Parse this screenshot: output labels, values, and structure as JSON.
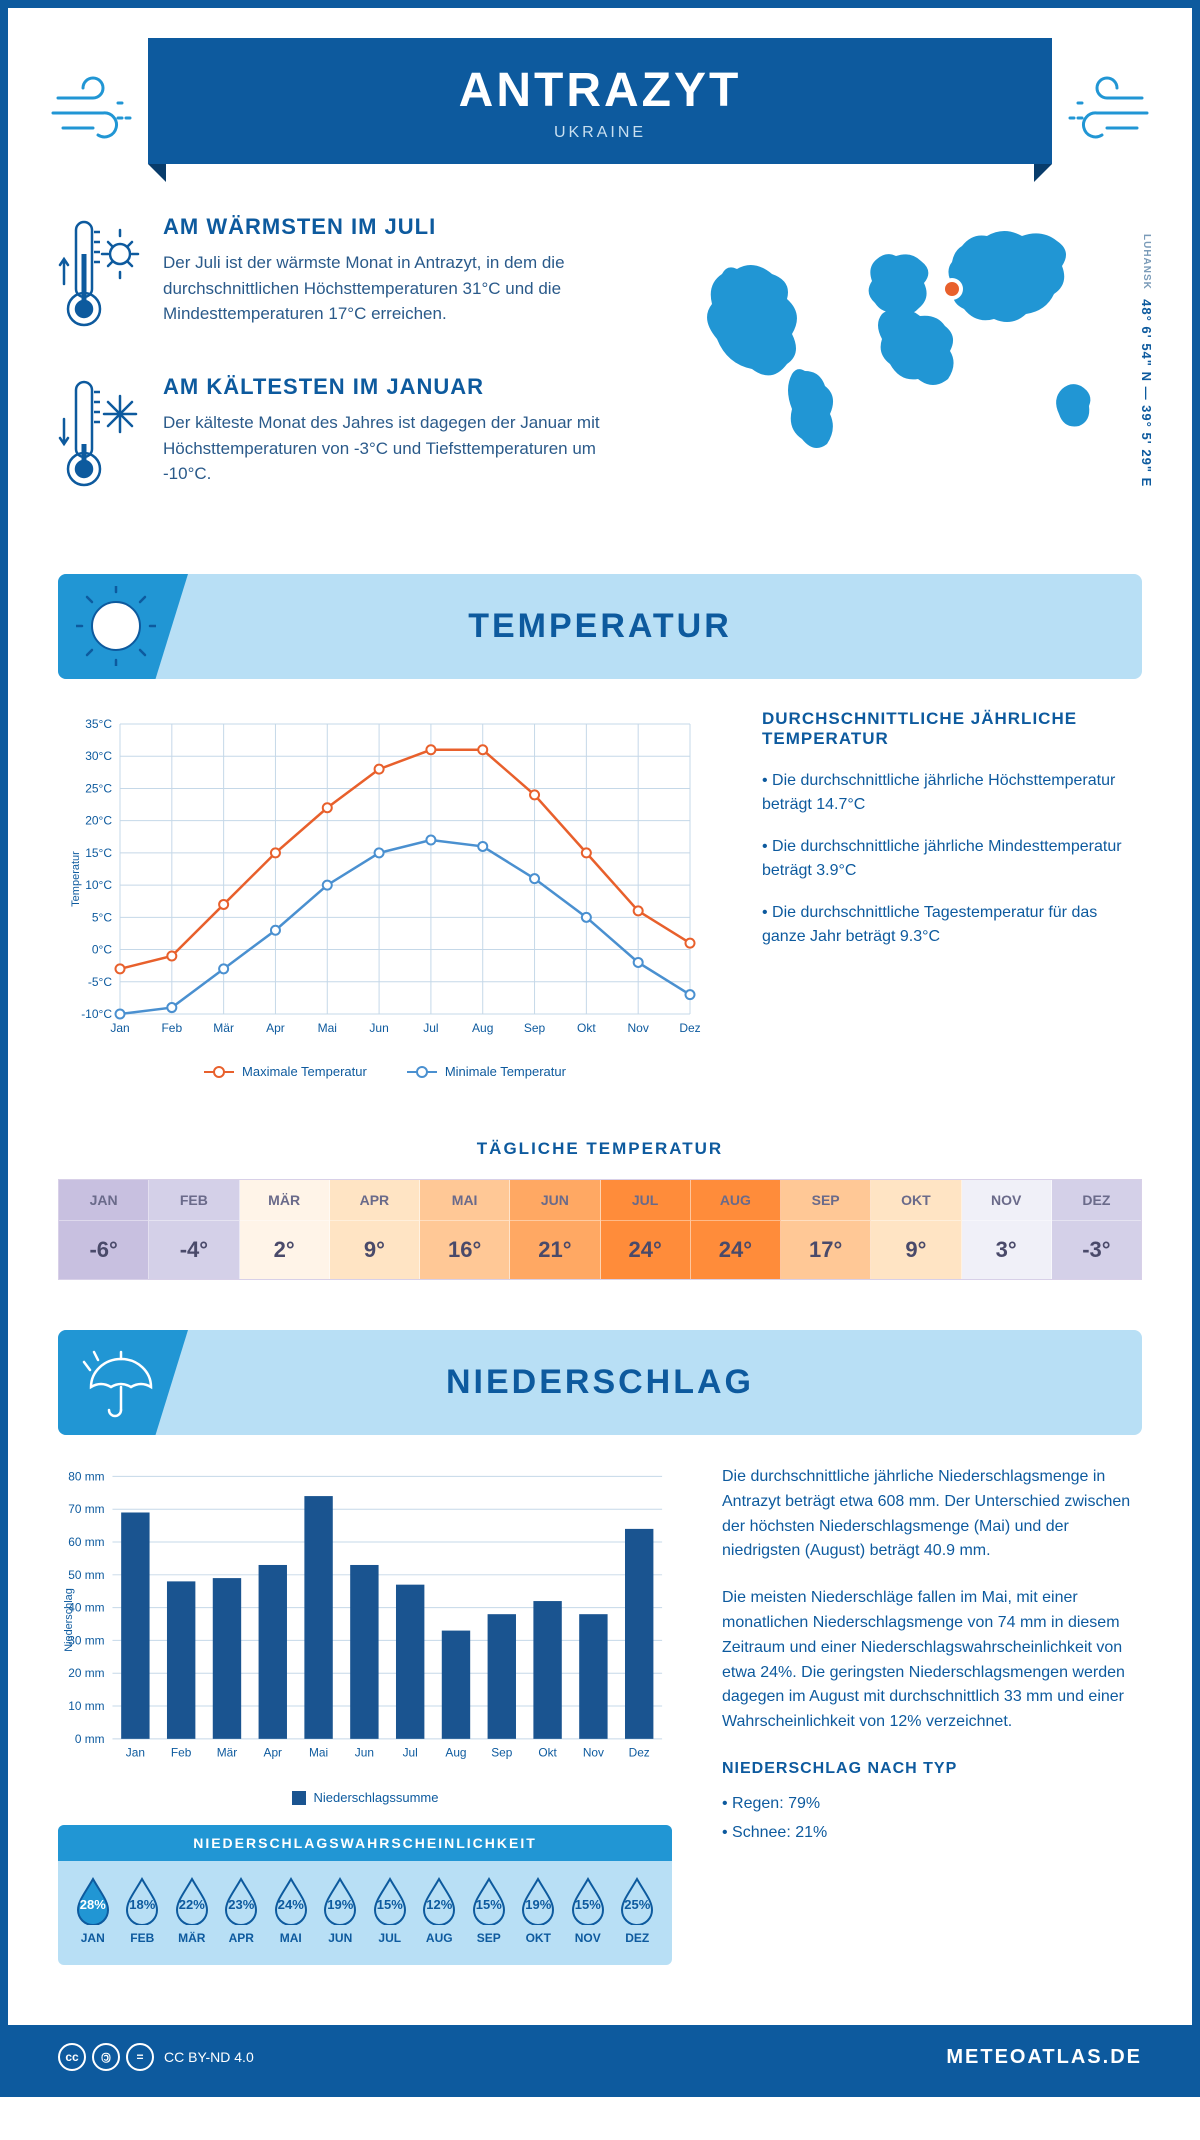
{
  "header": {
    "title": "ANTRAZYT",
    "subtitle": "UKRAINE"
  },
  "coords": {
    "text": "48° 6' 54\" N — 39° 5' 29\" E",
    "region": "LUHANSK"
  },
  "warmest": {
    "title": "AM WÄRMSTEN IM JULI",
    "text": "Der Juli ist der wärmste Monat in Antrazyt, in dem die durchschnittlichen Höchsttemperaturen 31°C und die Mindesttemperaturen 17°C erreichen."
  },
  "coldest": {
    "title": "AM KÄLTESTEN IM JANUAR",
    "text": "Der kälteste Monat des Jahres ist dagegen der Januar mit Höchsttemperaturen von -3°C und Tiefsttemperaturen um -10°C."
  },
  "colors": {
    "primary": "#0d5a9e",
    "accent": "#2196d4",
    "lightblue": "#b8dff5",
    "max_line": "#e8602c",
    "min_line": "#4a90d0",
    "grid": "#c5d8e8",
    "bar": "#1a5490"
  },
  "temp_section": {
    "title": "TEMPERATUR",
    "info_title": "DURCHSCHNITTLICHE JÄHRLICHE TEMPERATUR",
    "bullets": [
      "• Die durchschnittliche jährliche Höchsttemperatur beträgt 14.7°C",
      "• Die durchschnittliche jährliche Mindesttemperatur beträgt 3.9°C",
      "• Die durchschnittliche Tagestemperatur für das ganze Jahr beträgt 9.3°C"
    ],
    "legend_max": "Maximale Temperatur",
    "legend_min": "Minimale Temperatur",
    "chart": {
      "months": [
        "Jan",
        "Feb",
        "Mär",
        "Apr",
        "Mai",
        "Jun",
        "Jul",
        "Aug",
        "Sep",
        "Okt",
        "Nov",
        "Dez"
      ],
      "max": [
        -3,
        -1,
        7,
        15,
        22,
        28,
        31,
        31,
        24,
        15,
        6,
        1
      ],
      "min": [
        -10,
        -9,
        -3,
        3,
        10,
        15,
        17,
        16,
        11,
        5,
        -2,
        -7
      ],
      "ymin": -10,
      "ymax": 35,
      "ystep": 5,
      "ylabel": "Temperatur"
    }
  },
  "daily": {
    "title": "TÄGLICHE TEMPERATUR",
    "months": [
      "JAN",
      "FEB",
      "MÄR",
      "APR",
      "MAI",
      "JUN",
      "JUL",
      "AUG",
      "SEP",
      "OKT",
      "NOV",
      "DEZ"
    ],
    "values": [
      "-6°",
      "-4°",
      "2°",
      "9°",
      "16°",
      "21°",
      "24°",
      "24°",
      "17°",
      "9°",
      "3°",
      "-3°"
    ],
    "colors": [
      "#c8c0e0",
      "#d4d0e8",
      "#fff4e8",
      "#ffe4c4",
      "#ffc896",
      "#ffa863",
      "#ff8c3a",
      "#ff8c3a",
      "#ffc896",
      "#ffe4c4",
      "#f0f0f8",
      "#d4d0e8"
    ]
  },
  "precip_section": {
    "title": "NIEDERSCHLAG",
    "chart": {
      "months": [
        "Jan",
        "Feb",
        "Mär",
        "Apr",
        "Mai",
        "Jun",
        "Jul",
        "Aug",
        "Sep",
        "Okt",
        "Nov",
        "Dez"
      ],
      "values": [
        69,
        48,
        49,
        53,
        74,
        53,
        47,
        33,
        38,
        42,
        38,
        64
      ],
      "ymin": 0,
      "ymax": 80,
      "ystep": 10,
      "ylabel": "Niederschlag",
      "legend": "Niederschlagssumme"
    },
    "para1": "Die durchschnittliche jährliche Niederschlagsmenge in Antrazyt beträgt etwa 608 mm. Der Unterschied zwischen der höchsten Niederschlagsmenge (Mai) und der niedrigsten (August) beträgt 40.9 mm.",
    "para2": "Die meisten Niederschläge fallen im Mai, mit einer monatlichen Niederschlagsmenge von 74 mm in diesem Zeitraum und einer Niederschlagswahrscheinlichkeit von etwa 24%. Die geringsten Niederschlagsmengen werden dagegen im August mit durchschnittlich 33 mm und einer Wahrscheinlichkeit von 12% verzeichnet.",
    "type_title": "NIEDERSCHLAG NACH TYP",
    "type_rain": "• Regen: 79%",
    "type_snow": "• Schnee: 21%"
  },
  "probability": {
    "title": "NIEDERSCHLAGSWAHRSCHEINLICHKEIT",
    "months": [
      "JAN",
      "FEB",
      "MÄR",
      "APR",
      "MAI",
      "JUN",
      "JUL",
      "AUG",
      "SEP",
      "OKT",
      "NOV",
      "DEZ"
    ],
    "values": [
      "28%",
      "18%",
      "22%",
      "23%",
      "24%",
      "19%",
      "15%",
      "12%",
      "15%",
      "19%",
      "15%",
      "25%"
    ],
    "highlight_idx": 0,
    "drop_fill": "#2196d4",
    "drop_outline": "#0d5a9e"
  },
  "footer": {
    "license": "CC BY-ND 4.0",
    "brand": "METEOATLAS.DE"
  }
}
